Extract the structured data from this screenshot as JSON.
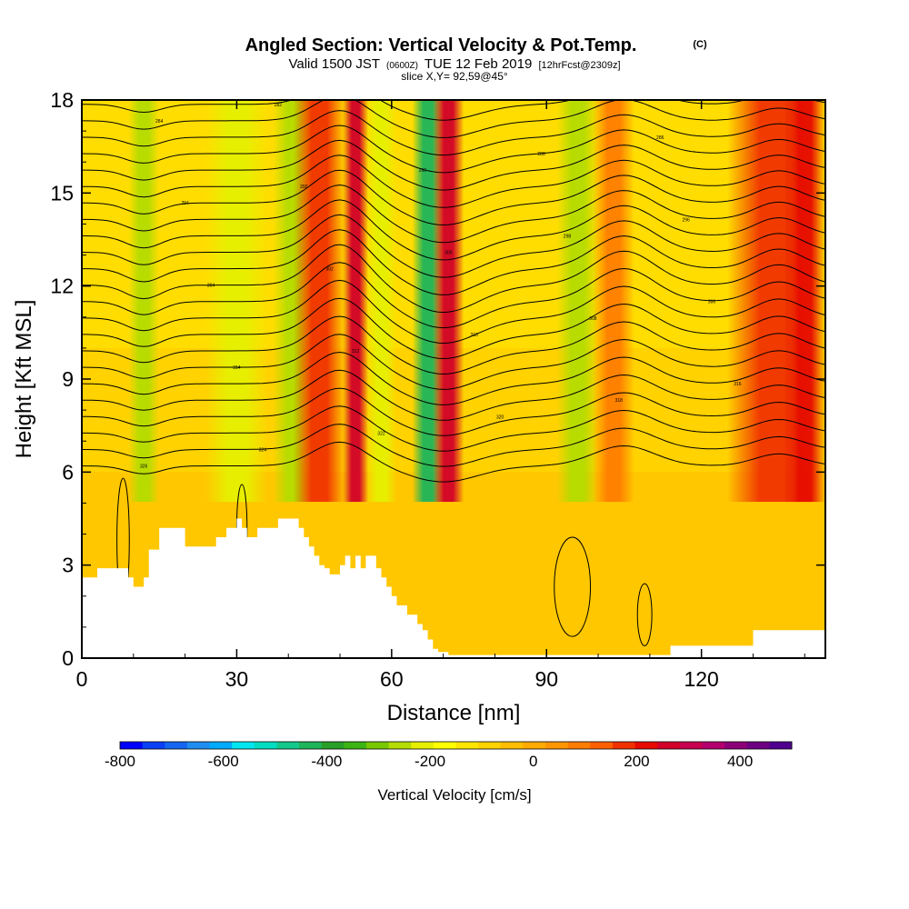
{
  "header": {
    "title": "Angled Section: Vertical Velocity & Pot.Temp.",
    "copyright": "(C)",
    "valid_prefix": "Valid 1500 JST",
    "valid_utc": "(0600Z)",
    "valid_suffix": "TUE 12 Feb 2019",
    "forecast": "[12hrFcst@2309z]",
    "slice": "slice X,Y= 92,59@45°"
  },
  "chart_data": {
    "type": "heatmap",
    "xlabel": "Distance [nm]",
    "ylabel": "Height [Kft MSL]",
    "xlim": [
      0,
      144
    ],
    "ylim": [
      0,
      18
    ],
    "xticks": [
      "0",
      "30",
      "60",
      "90",
      "120"
    ],
    "yticks": [
      "0",
      "3",
      "6",
      "9",
      "12",
      "15",
      "18"
    ],
    "colorbar": {
      "label": "Vertical Velocity [cm/s]",
      "range": [
        -800,
        500
      ],
      "step": 50,
      "ticks": [
        "-800",
        "-600",
        "-400",
        "-200",
        "0",
        "200",
        "400"
      ],
      "colors": [
        "#0000ff",
        "#0a3ff5",
        "#1466f0",
        "#1f8cf0",
        "#00aaff",
        "#00e6f0",
        "#00ddc0",
        "#14c88c",
        "#1eb45a",
        "#28a028",
        "#3cb414",
        "#78c800",
        "#b4dc00",
        "#e6f000",
        "#ffff00",
        "#ffe600",
        "#ffd200",
        "#ffbe00",
        "#ffaa00",
        "#ff9600",
        "#ff7d00",
        "#ff5f00",
        "#f03200",
        "#e60a00",
        "#d20028",
        "#c80050",
        "#b4006e",
        "#8c0078",
        "#6e0082",
        "#500090"
      ]
    },
    "velocity_columns": [
      {
        "x": 12,
        "w": 3,
        "value": -200
      },
      {
        "x": 30,
        "w": 6,
        "value": -120
      },
      {
        "x": 41,
        "w": 4,
        "value": -180
      },
      {
        "x": 46,
        "w": 5,
        "value": 300
      },
      {
        "x": 53,
        "w": 2.5,
        "value": 420
      },
      {
        "x": 58,
        "w": 3,
        "value": -120
      },
      {
        "x": 67,
        "w": 3,
        "value": -380
      },
      {
        "x": 71,
        "w": 3,
        "value": 420
      },
      {
        "x": 96,
        "w": 4,
        "value": -200
      },
      {
        "x": 103,
        "w": 4,
        "value": 200
      },
      {
        "x": 134,
        "w": 9,
        "value": 300
      },
      {
        "x": 140,
        "w": 4,
        "value": 350
      }
    ],
    "terrain_x": [
      0,
      3,
      8,
      9,
      10,
      12,
      13,
      15,
      19,
      20,
      24,
      26,
      28,
      29,
      30,
      31,
      32,
      33,
      34,
      36,
      38,
      39,
      41,
      42,
      43,
      44,
      45,
      46,
      47,
      48,
      49,
      50,
      51,
      52,
      53,
      54,
      55,
      56,
      57,
      58,
      59,
      60,
      61,
      62,
      63,
      64,
      65,
      66,
      67,
      68,
      69,
      70,
      71,
      72,
      75,
      78,
      80,
      100,
      113,
      114,
      120,
      128,
      130,
      138,
      144
    ],
    "terrain_y": [
      2.6,
      2.9,
      2.9,
      2.6,
      2.3,
      2.6,
      3.5,
      4.2,
      4.2,
      3.6,
      3.6,
      3.9,
      4.2,
      4.2,
      4.5,
      4.2,
      3.9,
      3.9,
      4.2,
      4.2,
      4.5,
      4.5,
      4.5,
      4.2,
      3.9,
      3.6,
      3.3,
      3.0,
      2.9,
      2.7,
      2.7,
      3.0,
      3.3,
      2.9,
      3.3,
      2.9,
      3.3,
      3.3,
      2.9,
      2.6,
      2.3,
      2.0,
      1.7,
      1.7,
      1.4,
      1.4,
      1.1,
      0.9,
      0.6,
      0.3,
      0.2,
      0.2,
      0.1,
      0.1,
      0.1,
      0.1,
      0.1,
      0.1,
      0.1,
      0.4,
      0.4,
      0.4,
      0.9,
      0.9,
      1.3
    ],
    "contour_labels": [
      "326",
      "324",
      "322",
      "320",
      "318",
      "316",
      "314",
      "312",
      "310",
      "308",
      "306",
      "304",
      "302",
      "300",
      "298",
      "296",
      "294",
      "292",
      "290",
      "288",
      "286",
      "284",
      "282"
    ]
  }
}
